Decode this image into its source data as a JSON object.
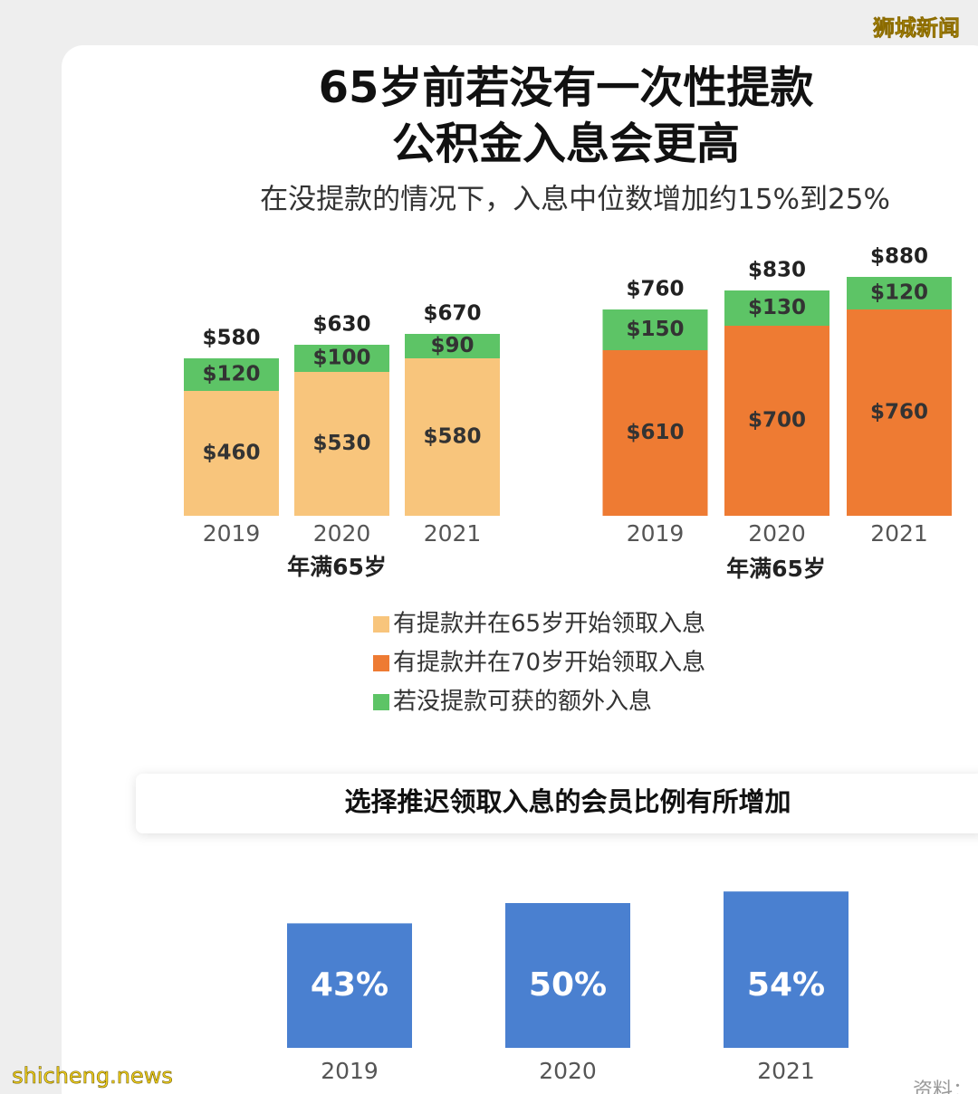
{
  "title_lines": [
    "65岁前若没有一次性提款",
    "公积金入息会更高"
  ],
  "subtitle": "在没提款的情况下，入息中位数增加约15%到25%",
  "watermarks": [
    "狮城新闻",
    "shicheng.news"
  ],
  "source": "资料：",
  "chart_data": [
    {
      "type": "bar",
      "stacked": true,
      "x_label": "年满65岁",
      "categories": [
        "2019",
        "2020",
        "2021"
      ],
      "series": [
        {
          "name": "有提款并在65岁开始领取入息",
          "color": "#f8c57c",
          "values": [
            460,
            530,
            580
          ],
          "value_labels": [
            "$460",
            "$530",
            "$580"
          ]
        },
        {
          "name": "若没提款可获的额外入息",
          "color": "#5dc466",
          "values": [
            120,
            100,
            90
          ],
          "value_labels": [
            "$120",
            "$100",
            "$90"
          ]
        }
      ],
      "totals": [
        580,
        630,
        670
      ],
      "total_labels": [
        "$580",
        "$630",
        "$670"
      ]
    },
    {
      "type": "bar",
      "stacked": true,
      "x_label": "年满65岁",
      "categories": [
        "2019",
        "2020",
        "2021"
      ],
      "series": [
        {
          "name": "有提款并在70岁开始领取入息",
          "color": "#ee7b33",
          "values": [
            610,
            700,
            760
          ],
          "value_labels": [
            "$610",
            "$700",
            "$760"
          ]
        },
        {
          "color": "#5dc466",
          "values": [
            150,
            130,
            120
          ],
          "value_labels": [
            "$150",
            "$130",
            "$120"
          ]
        }
      ],
      "totals": [
        760,
        830,
        880
      ],
      "total_labels": [
        "$760",
        "$830",
        "$880"
      ]
    },
    {
      "type": "bar",
      "title": "选择推迟领取入息的会员比例有所增加",
      "categories": [
        "2019",
        "2020",
        "2021"
      ],
      "color": "#4a80d0",
      "values": [
        43,
        50,
        54
      ],
      "value_labels": [
        "43%",
        "50%",
        "54%"
      ]
    }
  ]
}
